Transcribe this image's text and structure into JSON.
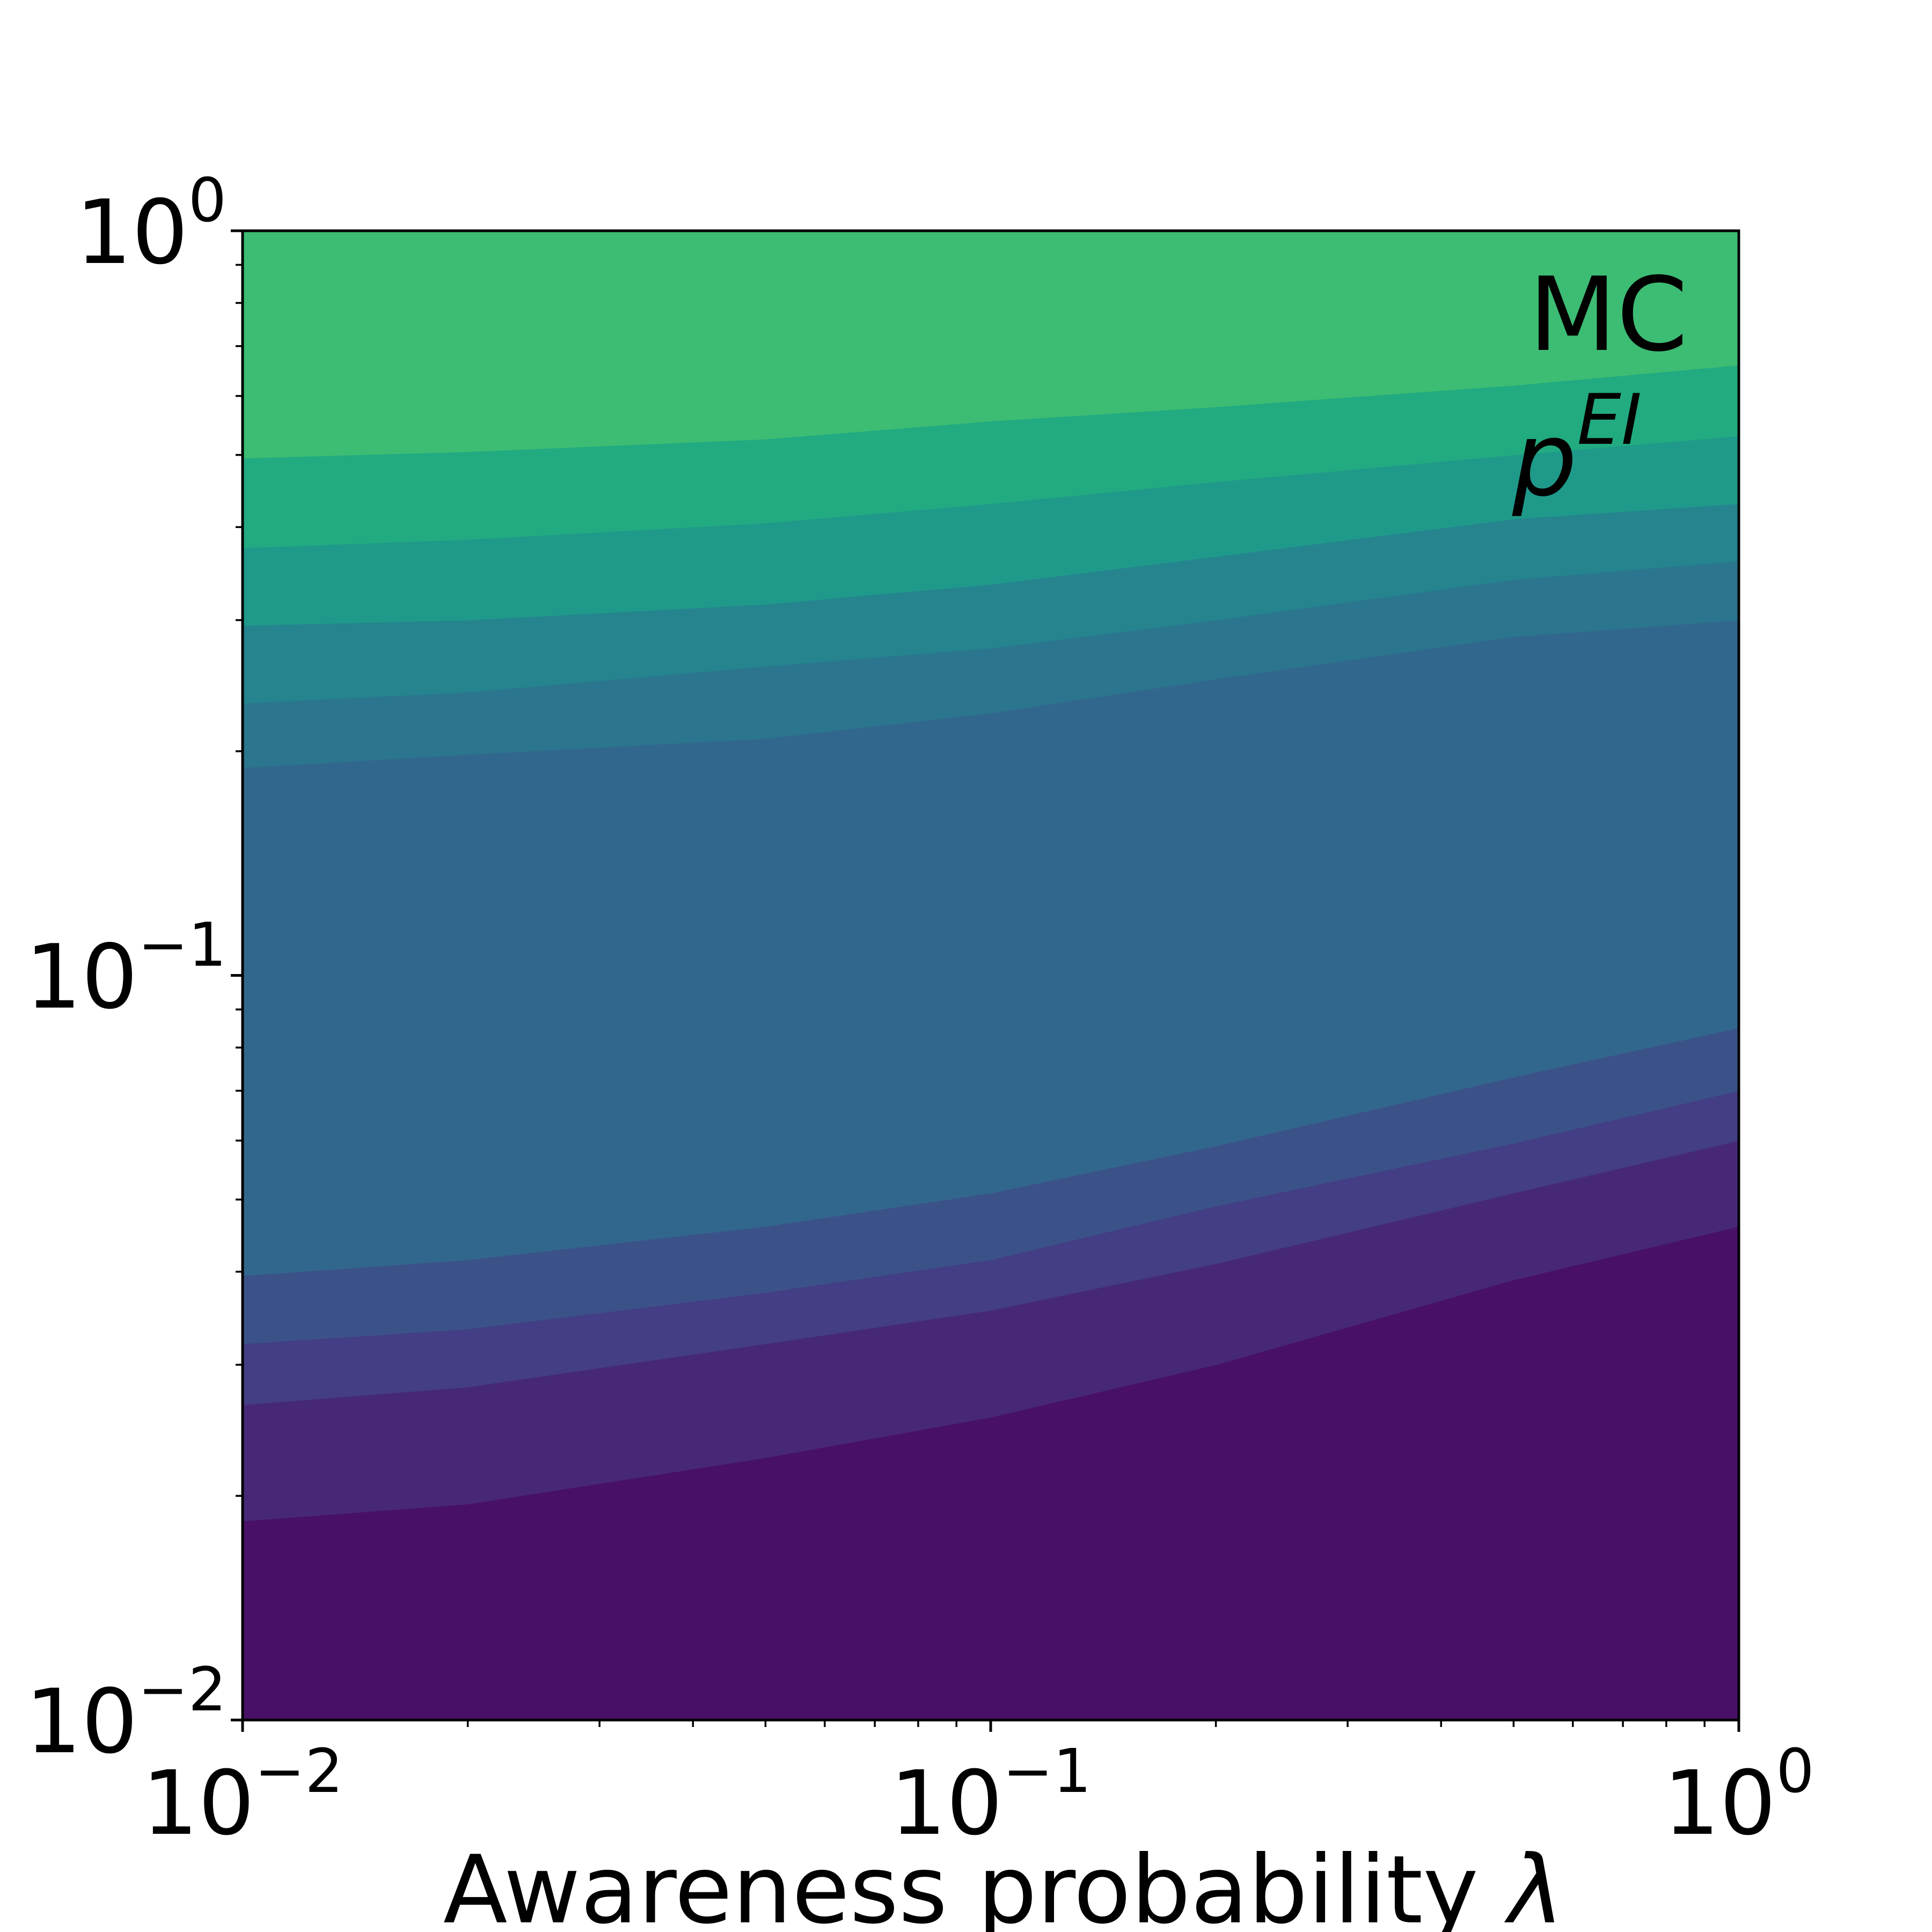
{
  "chart_data": {
    "type": "contour",
    "annotation": {
      "line1": "MC",
      "line2_base": "p",
      "line2_sup": "EI"
    },
    "xlabel": {
      "text": "Awareness probability ",
      "symbol": "λ"
    },
    "ylabel": "",
    "xscale": "log",
    "yscale": "log",
    "xlim": [
      0.01,
      1
    ],
    "ylim": [
      0.01,
      1
    ],
    "grid": false,
    "legend": "none",
    "x_ticks": [
      {
        "base": "10",
        "exp": "−2"
      },
      {
        "base": "10",
        "exp": "−1"
      },
      {
        "base": "10",
        "exp": "0"
      }
    ],
    "y_ticks": [
      {
        "base": "10",
        "exp": "−2"
      },
      {
        "base": "10",
        "exp": "−1"
      },
      {
        "base": "10",
        "exp": "0"
      }
    ],
    "x_boundary_samples": [
      0.01,
      0.02,
      0.05,
      0.1,
      0.2,
      0.5,
      1.0
    ],
    "level_boundaries": [
      [
        0.0185,
        0.0195,
        0.0225,
        0.0255,
        0.03,
        0.039,
        0.046
      ],
      [
        0.0265,
        0.028,
        0.032,
        0.0355,
        0.041,
        0.051,
        0.06
      ],
      [
        0.032,
        0.0335,
        0.0375,
        0.0415,
        0.049,
        0.0595,
        0.07
      ],
      [
        0.0395,
        0.0415,
        0.046,
        0.051,
        0.059,
        0.073,
        0.085
      ],
      [
        0.19,
        0.198,
        0.208,
        0.225,
        0.25,
        0.285,
        0.3
      ],
      [
        0.232,
        0.24,
        0.26,
        0.275,
        0.3,
        0.34,
        0.36
      ],
      [
        0.295,
        0.3,
        0.315,
        0.335,
        0.365,
        0.41,
        0.43
      ],
      [
        0.375,
        0.385,
        0.405,
        0.43,
        0.46,
        0.5,
        0.53
      ],
      [
        0.495,
        0.505,
        0.525,
        0.555,
        0.58,
        0.62,
        0.66
      ]
    ],
    "level_colors": [
      "#481167",
      "#472878",
      "#433e85",
      "#3b5289",
      "#32678d",
      "#2b758e",
      "#25848e",
      "#1f9a8a",
      "#22ab80",
      "#3dbc74"
    ]
  }
}
